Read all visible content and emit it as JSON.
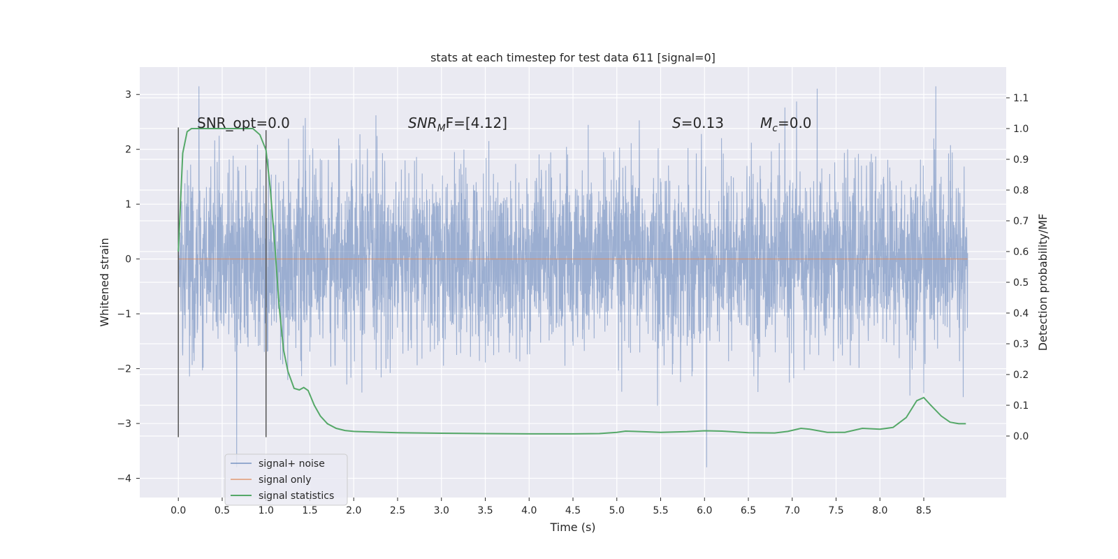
{
  "chart_data": {
    "type": "line",
    "title": "stats at each timestep for test data 611 [signal=0]",
    "xlabel": "Time (s)",
    "ylabel_left": "Whitened strain",
    "ylabel_right": "Detection probability/MF",
    "xlim": [
      -0.44,
      9.44
    ],
    "ylim_left": [
      -4.35,
      3.5
    ],
    "ylim_right": [
      -0.2,
      1.2
    ],
    "x_ticks": [
      0.0,
      0.5,
      1.0,
      1.5,
      2.0,
      2.5,
      3.0,
      3.5,
      4.0,
      4.5,
      5.0,
      5.5,
      6.0,
      6.5,
      7.0,
      7.5,
      8.0,
      8.5
    ],
    "x_tick_labels": [
      "0.0",
      "0.5",
      "1.0",
      "1.5",
      "2.0",
      "2.5",
      "3.0",
      "3.5",
      "4.0",
      "4.5",
      "5.0",
      "5.5",
      "6.0",
      "6.5",
      "7.0",
      "7.5",
      "8.0",
      "8.5"
    ],
    "y_left_ticks": [
      -4,
      -3,
      -2,
      -1,
      0,
      1,
      2,
      3
    ],
    "y_left_tick_labels": [
      "−4",
      "−3",
      "−2",
      "−1",
      "0",
      "1",
      "2",
      "3"
    ],
    "y_right_ticks": [
      0.0,
      0.1,
      0.2,
      0.3,
      0.4,
      0.5,
      0.6,
      0.7,
      0.8,
      0.9,
      1.0,
      1.1
    ],
    "y_right_tick_labels": [
      "0.0",
      "0.1",
      "0.2",
      "0.3",
      "0.4",
      "0.5",
      "0.6",
      "0.7",
      "0.8",
      "0.9",
      "1.0",
      "1.1"
    ],
    "series": [
      {
        "name": "signal+ noise",
        "axis": "left",
        "color": "#4c72b0",
        "description": "whitened strain noise, ~0..9 s, typical amplitude within about ±1.5 with spikes up to 3.15 and down to -3.8",
        "x_range": [
          0.0,
          9.0
        ],
        "typical_amplitude": 1.3,
        "max": 3.15,
        "min": -3.8
      },
      {
        "name": "signal only",
        "axis": "left",
        "color": "#dd8452",
        "x": [
          0.0,
          9.0
        ],
        "y": [
          0.0,
          0.0
        ]
      },
      {
        "name": "signal statistics",
        "axis": "right",
        "color": "#55a868",
        "x": [
          0.0,
          0.05,
          0.1,
          0.15,
          0.2,
          0.3,
          0.5,
          0.7,
          0.85,
          0.93,
          1.0,
          1.05,
          1.1,
          1.15,
          1.2,
          1.25,
          1.32,
          1.38,
          1.43,
          1.48,
          1.55,
          1.62,
          1.7,
          1.8,
          1.9,
          2.0,
          2.5,
          3.0,
          3.5,
          4.0,
          4.5,
          4.8,
          5.0,
          5.1,
          5.2,
          5.5,
          5.8,
          6.0,
          6.2,
          6.5,
          6.8,
          6.95,
          7.1,
          7.2,
          7.4,
          7.6,
          7.8,
          8.0,
          8.15,
          8.3,
          8.42,
          8.5,
          8.58,
          8.7,
          8.8,
          8.9,
          8.98
        ],
        "y": [
          0.6,
          0.92,
          0.99,
          1.0,
          1.0,
          1.0,
          1.0,
          1.0,
          1.0,
          0.98,
          0.93,
          0.8,
          0.62,
          0.42,
          0.28,
          0.21,
          0.155,
          0.15,
          0.158,
          0.148,
          0.1,
          0.065,
          0.04,
          0.025,
          0.018,
          0.015,
          0.011,
          0.009,
          0.008,
          0.007,
          0.007,
          0.008,
          0.012,
          0.016,
          0.015,
          0.012,
          0.014,
          0.017,
          0.016,
          0.011,
          0.01,
          0.015,
          0.025,
          0.022,
          0.012,
          0.012,
          0.025,
          0.022,
          0.028,
          0.06,
          0.115,
          0.125,
          0.1,
          0.065,
          0.045,
          0.04,
          0.04
        ]
      }
    ],
    "vlines": [
      {
        "x": 0.0,
        "ymin": -3.25,
        "ymax": 2.4
      },
      {
        "x": 1.0,
        "ymin": -3.25,
        "ymax": 2.35
      }
    ],
    "annotations": [
      {
        "id": "snr_opt",
        "text": "SNR_opt=0.0"
      },
      {
        "id": "snr_mf",
        "text_italic": "SNR",
        "sub": "M",
        "text_rest": "F=[4.12]"
      },
      {
        "id": "s",
        "text_italic": "S",
        "text_rest": "=0.13"
      },
      {
        "id": "mc",
        "text_italic": "M",
        "sub": "c",
        "text_rest": "=0.0"
      }
    ],
    "legend": {
      "placement": "lower-left",
      "entries": [
        {
          "label": "signal+ noise",
          "color": "#4c72b0"
        },
        {
          "label": "signal only",
          "color": "#dd8452"
        },
        {
          "label": "signal statistics",
          "color": "#55a868"
        }
      ]
    },
    "grid": true,
    "background": "#eaeaf2"
  }
}
